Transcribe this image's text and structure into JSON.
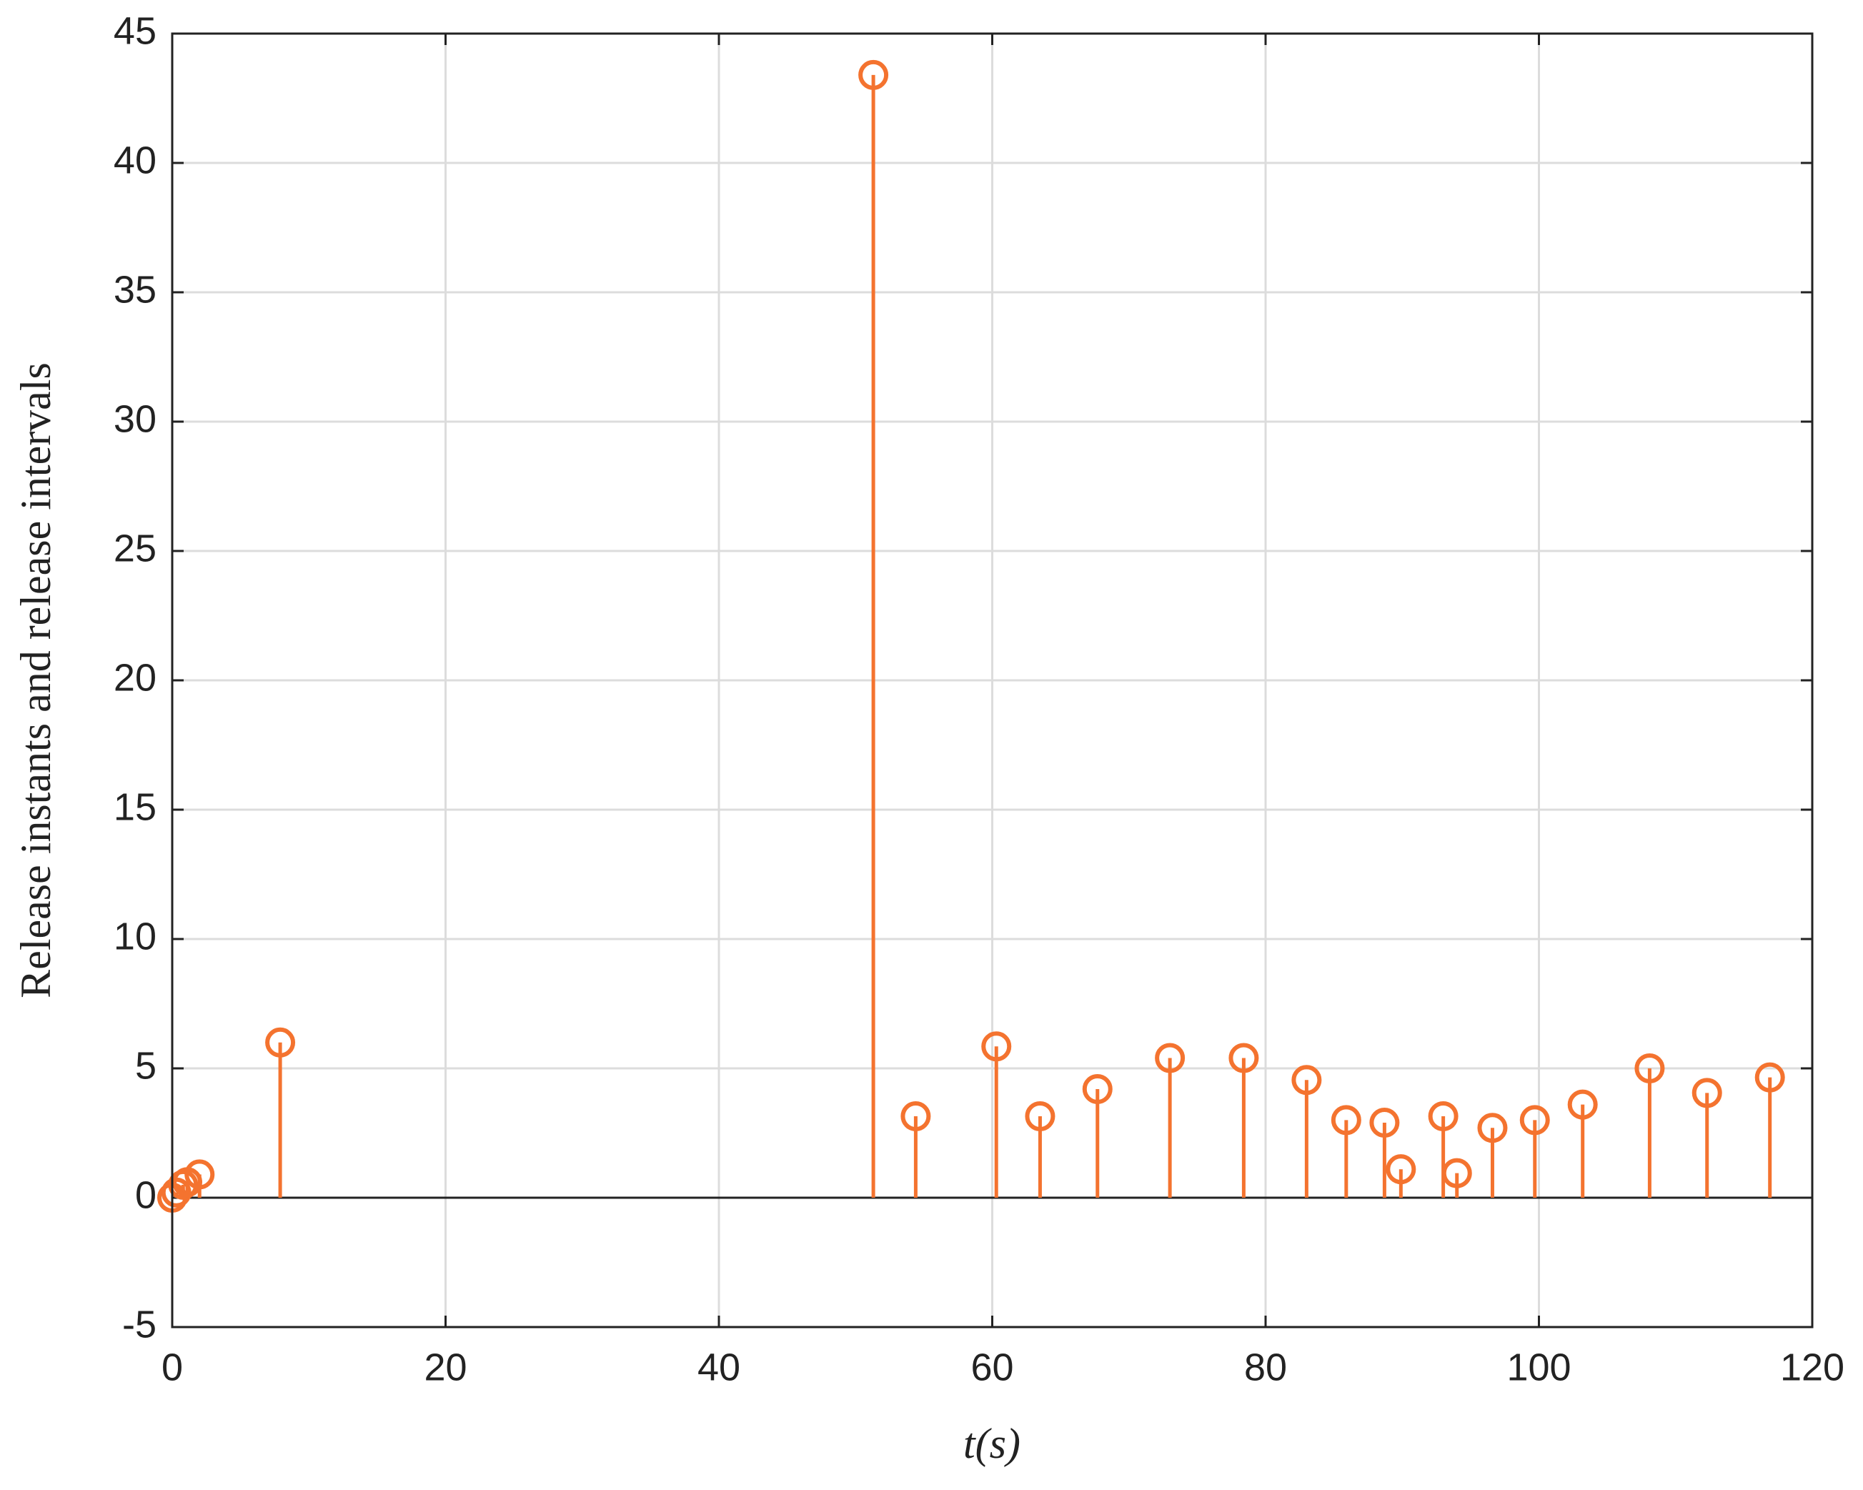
{
  "chart_data": {
    "type": "stem",
    "xlabel": "t(s)",
    "ylabel": "Release instants and release intervals",
    "x": [
      0,
      0.3,
      0.8,
      1.1,
      2,
      7.9,
      51.3,
      54.4,
      60.3,
      63.5,
      67.7,
      73.0,
      78.4,
      83.0,
      85.9,
      88.7,
      89.9,
      93.0,
      94.0,
      96.6,
      99.7,
      103.2,
      108.1,
      112.3,
      116.9
    ],
    "values": [
      0,
      0.2,
      0.5,
      0.6,
      0.9,
      6.0,
      43.4,
      3.15,
      5.85,
      3.15,
      4.2,
      5.4,
      5.4,
      4.55,
      3.0,
      2.9,
      1.1,
      3.15,
      0.95,
      2.7,
      3.0,
      3.6,
      5.0,
      4.05,
      4.65
    ],
    "color": "#f4732f",
    "xlim": [
      0,
      120
    ],
    "xticks": [
      0,
      20,
      40,
      60,
      80,
      100,
      120
    ],
    "ylim": [
      -5,
      45
    ],
    "yticks": [
      -5,
      0,
      5,
      10,
      15,
      20,
      25,
      30,
      35,
      40,
      45
    ],
    "grid": true
  }
}
